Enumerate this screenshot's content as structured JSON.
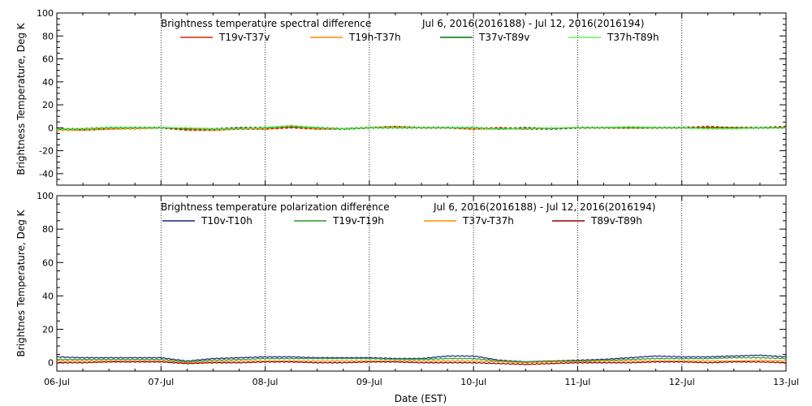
{
  "chart_data": [
    {
      "type": "line",
      "title": "Brightness temperature spectral difference",
      "date_range": "Jul  6, 2016(2016188) - Jul 12, 2016(2016194)",
      "ylabel": "Brightness Temperature, Deg K",
      "xlabel": "",
      "ylim": [
        -50,
        100
      ],
      "y_ticks": [
        "-40",
        "-20",
        "0",
        "20",
        "40",
        "60",
        "80",
        "100"
      ],
      "x_ticks": [
        "06-Jul",
        "07-Jul",
        "08-Jul",
        "09-Jul",
        "10-Jul",
        "11-Jul",
        "12-Jul",
        "13-Jul"
      ],
      "xlim_days": [
        0,
        7
      ],
      "grid": "vertical dotted lines at each day",
      "legend_position": "top",
      "series": [
        {
          "name": "T19v-T37v",
          "color": "#dd2200",
          "x": [
            0,
            0.25,
            0.5,
            0.75,
            1,
            1.25,
            1.5,
            1.75,
            2,
            2.25,
            2.5,
            2.75,
            3,
            3.25,
            3.5,
            3.75,
            4,
            4.25,
            4.5,
            4.75,
            5,
            5.25,
            5.5,
            5.75,
            6,
            6.25,
            6.5,
            6.75,
            7
          ],
          "values": [
            -1,
            -2,
            -1,
            0,
            0,
            -2,
            -2,
            -1,
            -1,
            0,
            -1,
            -1,
            0,
            1,
            0,
            0,
            -1,
            0,
            -1,
            -1,
            0,
            0,
            0,
            0,
            0,
            1,
            0,
            0,
            1
          ]
        },
        {
          "name": "T19h-T37h",
          "color": "#ff8800",
          "x": [
            0,
            0.25,
            0.5,
            0.75,
            1,
            1.25,
            1.5,
            1.75,
            2,
            2.25,
            2.5,
            2.75,
            3,
            3.25,
            3.5,
            3.75,
            4,
            4.25,
            4.5,
            4.75,
            5,
            5.25,
            5.5,
            5.75,
            6,
            6.25,
            6.5,
            6.75,
            7
          ],
          "values": [
            -2,
            -2,
            -1,
            -1,
            0,
            -1,
            -2,
            -1,
            -1,
            1,
            -1,
            -1,
            0,
            1,
            0,
            0,
            -1,
            -1,
            -1,
            0,
            0,
            0,
            0,
            0,
            0,
            0,
            0,
            0,
            0
          ]
        },
        {
          "name": "T37v-T89v",
          "color": "#007700",
          "x": [
            0,
            0.25,
            0.5,
            0.75,
            1,
            1.25,
            1.5,
            1.75,
            2,
            2.25,
            2.5,
            2.75,
            3,
            3.25,
            3.5,
            3.75,
            4,
            4.25,
            4.5,
            4.75,
            5,
            5.25,
            5.5,
            5.75,
            6,
            6.25,
            6.5,
            6.75,
            7
          ],
          "values": [
            -1,
            -1,
            0,
            0,
            0,
            -1,
            -1,
            0,
            0,
            1,
            0,
            -1,
            0,
            0,
            0,
            0,
            0,
            -1,
            0,
            -1,
            0,
            0,
            0,
            0,
            0,
            0,
            0,
            0,
            0
          ]
        },
        {
          "name": "T37h-T89h",
          "color": "#66ee66",
          "x": [
            0,
            0.25,
            0.5,
            0.75,
            1,
            1.25,
            1.5,
            1.75,
            2,
            2.25,
            2.5,
            2.75,
            3,
            3.25,
            3.5,
            3.75,
            4,
            4.25,
            4.5,
            4.75,
            5,
            5.25,
            5.5,
            5.75,
            6,
            6.25,
            6.5,
            6.75,
            7
          ],
          "values": [
            -1,
            -1,
            0,
            0,
            0,
            0,
            -1,
            -1,
            0,
            2,
            0,
            -1,
            0,
            0,
            0,
            0,
            0,
            -1,
            -1,
            0,
            0,
            0,
            1,
            0,
            0,
            -1,
            -1,
            0,
            0
          ]
        }
      ]
    },
    {
      "type": "line",
      "title": "Brightness temperature polarization difference",
      "date_range": "Jul  6, 2016(2016188) - Jul 12, 2016(2016194)",
      "ylabel": "Brightnes Temperature, Deg K",
      "xlabel": "Date (EST)",
      "ylim": [
        -5,
        100
      ],
      "y_ticks": [
        "0",
        "20",
        "40",
        "60",
        "80",
        "100"
      ],
      "x_ticks": [
        "06-Jul",
        "07-Jul",
        "08-Jul",
        "09-Jul",
        "10-Jul",
        "11-Jul",
        "12-Jul",
        "13-Jul"
      ],
      "xlim_days": [
        0,
        7
      ],
      "grid": "vertical dotted lines at each day",
      "legend_position": "top",
      "series": [
        {
          "name": "T10v-T10h",
          "color": "#1a237e",
          "x": [
            0,
            0.25,
            0.5,
            0.75,
            1,
            1.25,
            1.5,
            1.75,
            2,
            2.25,
            2.5,
            2.75,
            3,
            3.25,
            3.5,
            3.75,
            4,
            4.25,
            4.5,
            4.75,
            5,
            5.25,
            5.5,
            5.75,
            6,
            6.25,
            6.5,
            6.75,
            7
          ],
          "values": [
            3.5,
            3,
            3,
            3,
            3,
            1,
            2.5,
            3,
            3.5,
            3.5,
            3,
            3,
            3,
            2.5,
            2.5,
            4,
            4,
            1.5,
            0.5,
            1,
            1.5,
            2,
            3,
            4,
            3.5,
            3.5,
            4,
            4.5,
            3.5
          ]
        },
        {
          "name": "T19v-T19h",
          "color": "#229922",
          "x": [
            0,
            0.25,
            0.5,
            0.75,
            1,
            1.25,
            1.5,
            1.75,
            2,
            2.25,
            2.5,
            2.75,
            3,
            3.25,
            3.5,
            3.75,
            4,
            4.25,
            4.5,
            4.75,
            5,
            5.25,
            5.5,
            5.75,
            6,
            6.25,
            6.5,
            6.75,
            7
          ],
          "values": [
            2,
            2,
            2,
            2,
            2,
            0.5,
            1.5,
            2,
            2.5,
            2.5,
            2.5,
            2.5,
            2.5,
            2,
            2,
            2.5,
            2.5,
            1,
            0.5,
            1,
            1,
            1.5,
            2,
            2.5,
            2.5,
            2.5,
            3,
            3,
            2.5
          ]
        },
        {
          "name": "T37v-T37h",
          "color": "#ff8800",
          "x": [
            0,
            0.25,
            0.5,
            0.75,
            1,
            1.25,
            1.5,
            1.75,
            2,
            2.25,
            2.5,
            2.75,
            3,
            3.25,
            3.5,
            3.75,
            4,
            4.25,
            4.5,
            4.75,
            5,
            5.25,
            5.5,
            5.75,
            6,
            6.25,
            6.5,
            6.75,
            7
          ],
          "values": [
            1,
            1,
            1,
            1,
            1,
            0,
            0.5,
            1,
            1,
            1,
            1,
            1,
            1,
            1,
            1,
            1,
            1,
            0.5,
            0,
            0.5,
            0.5,
            1,
            1,
            1,
            1,
            1,
            1,
            1.5,
            1
          ]
        },
        {
          "name": "T89v-T89h",
          "color": "#8b0000",
          "x": [
            0,
            0.25,
            0.5,
            0.75,
            1,
            1.25,
            1.5,
            1.75,
            2,
            2.25,
            2.5,
            2.75,
            3,
            3.25,
            3.5,
            3.75,
            4,
            4.25,
            4.5,
            4.75,
            5,
            5.25,
            5.5,
            5.75,
            6,
            6.25,
            6.5,
            6.75,
            7
          ],
          "values": [
            0,
            0,
            0.5,
            0.5,
            0.5,
            -0.5,
            0,
            0,
            0.5,
            0.5,
            0,
            0,
            0.5,
            0.5,
            0,
            0,
            0,
            -0.5,
            -1,
            -0.5,
            0,
            0,
            0,
            0.5,
            0.5,
            0,
            0.5,
            0.5,
            0
          ]
        }
      ]
    }
  ]
}
